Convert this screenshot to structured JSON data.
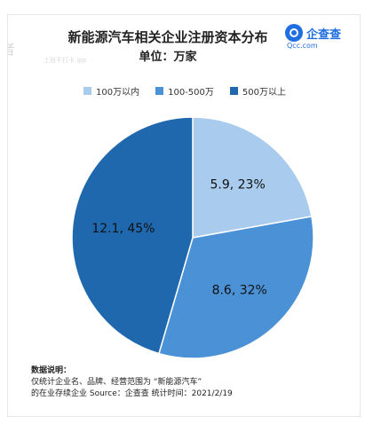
{
  "header": {
    "title": "新能源汽车相关企业注册资本分布",
    "subtitle": "单位：万家"
  },
  "brand": {
    "name": "企查查",
    "url": "Qcc.com"
  },
  "watermark": {
    "text": "者",
    "sub": "上班不打卡 ipp"
  },
  "chart_data": {
    "type": "pie",
    "title": "新能源汽车相关企业注册资本分布",
    "unit": "万家",
    "legend_position": "top",
    "slices": [
      {
        "label": "100万以内",
        "value": 5.9,
        "percent": 23,
        "display": "5.9, 23%",
        "color": "#a9cbed"
      },
      {
        "label": "100-500万",
        "value": 8.6,
        "percent": 32,
        "display": "8.6, 32%",
        "color": "#4a91d6"
      },
      {
        "label": "500万以上",
        "value": 12.1,
        "percent": 45,
        "display": "12.1, 45%",
        "color": "#1f68ad"
      }
    ]
  },
  "notes": {
    "heading": "数据说明：",
    "line1": "仅统计企业名、品牌、经营范围为 “新能源汽车”",
    "line2": "的在业存续企业    Source：企查查    统计时间：2021/2/19"
  }
}
